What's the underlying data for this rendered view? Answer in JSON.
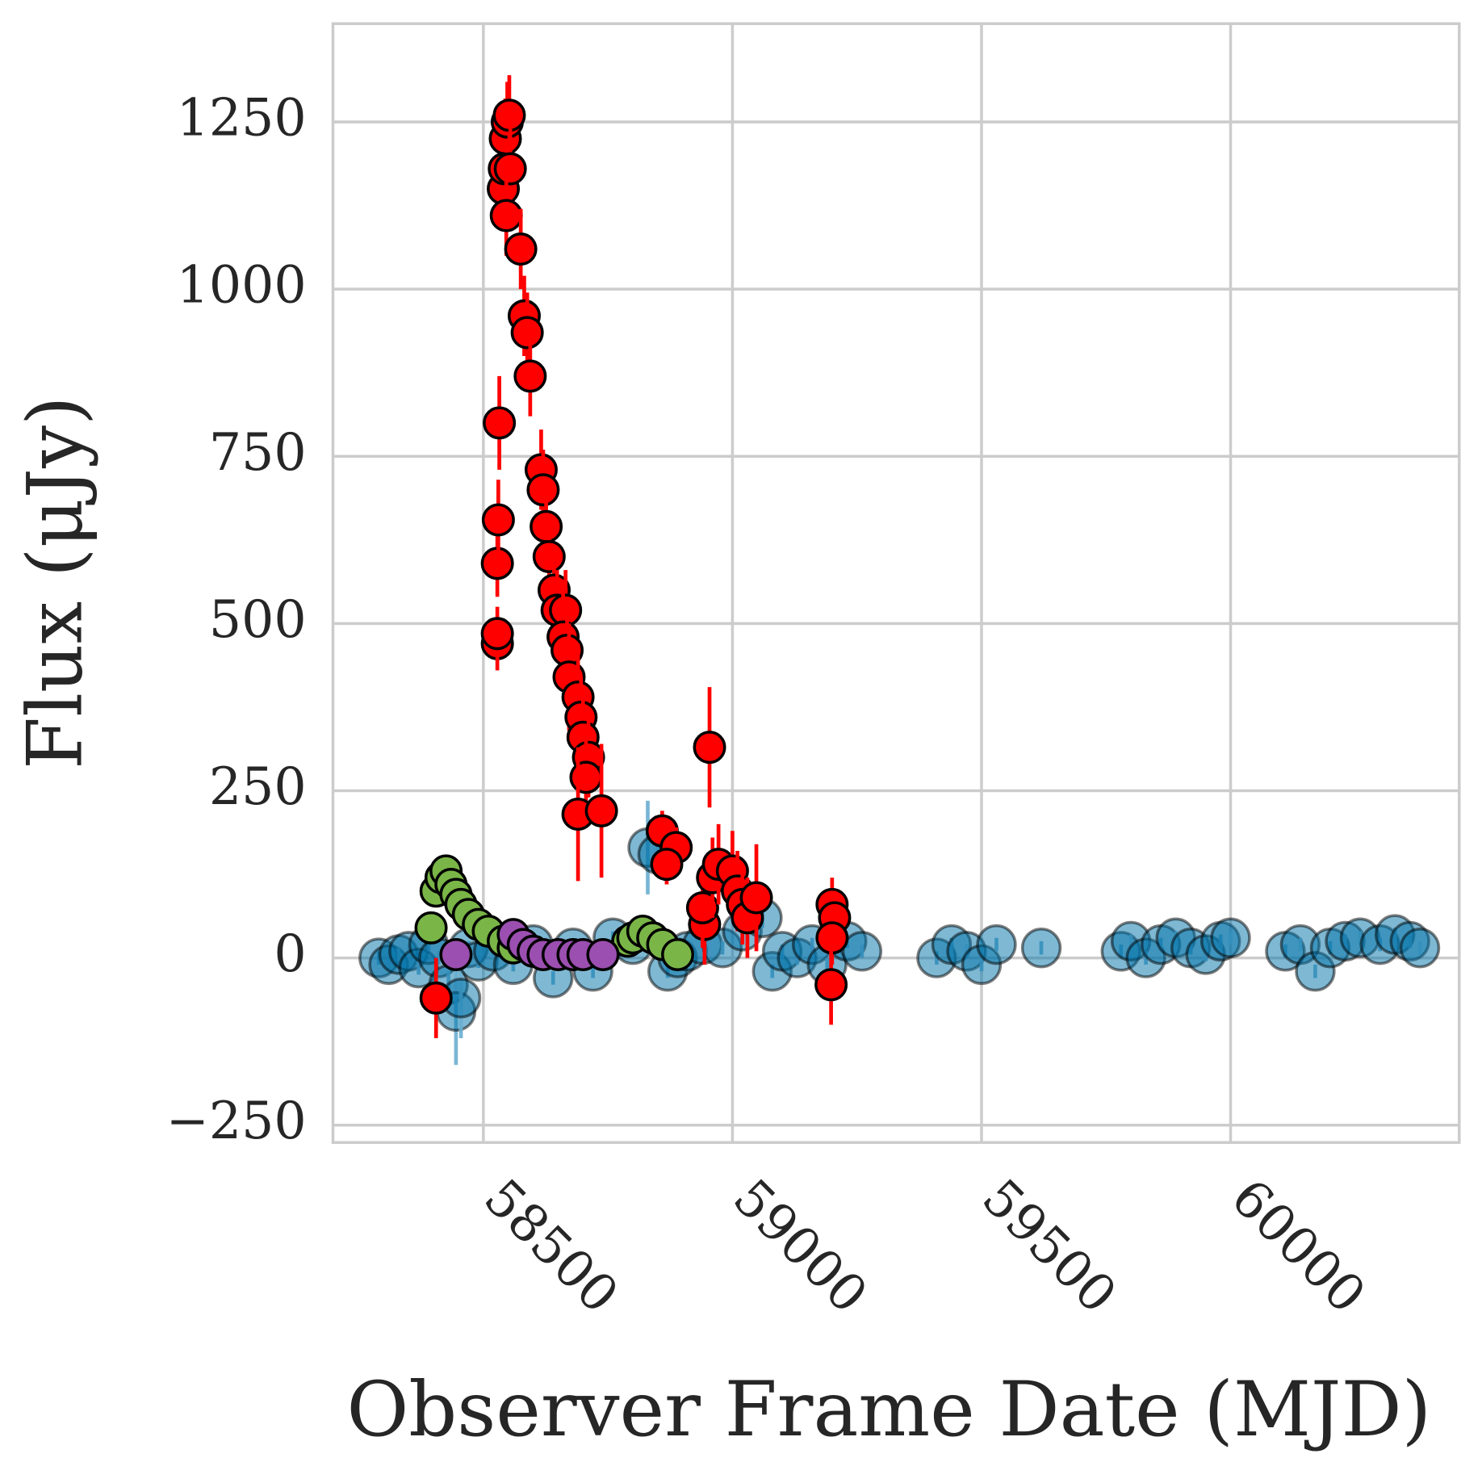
{
  "chart_data": {
    "type": "scatter",
    "xlabel": "Observer Frame Date (MJD)",
    "ylabel": "Flux (μJy)",
    "xlim": [
      58198,
      60459
    ],
    "ylim": [
      -276,
      1397
    ],
    "xticks": [
      58500,
      59000,
      59500,
      60000
    ],
    "yticks": [
      {
        "value": -250,
        "label": "−250"
      },
      0,
      250,
      500,
      750,
      1000,
      1250
    ],
    "grid": true,
    "series": [
      {
        "color": "#0072a8",
        "ecolor": "#6aaed0",
        "alpha": 0.5,
        "x": [
          58290,
          58310,
          58330,
          58350,
          58370,
          58390,
          58410,
          58430,
          58445,
          58455,
          58470,
          58490,
          58520,
          58560,
          58600,
          58640,
          58680,
          58720,
          58760,
          58800,
          58830,
          58850,
          58870,
          58890,
          58910,
          58940,
          58980,
          59020,
          59060,
          59080,
          59100,
          59130,
          59160,
          59190,
          59230,
          59260,
          59410,
          59440,
          59470,
          59500,
          59530,
          59620,
          59780,
          59800,
          59830,
          59860,
          59890,
          59920,
          59950,
          59980,
          60000,
          60110,
          60140,
          60170,
          60200,
          60230,
          60260,
          60300,
          60330,
          60360,
          60380
        ],
        "values": [
          0,
          -10,
          5,
          10,
          -15,
          20,
          0,
          -40,
          -80,
          -60,
          15,
          -5,
          10,
          -10,
          20,
          -30,
          15,
          -20,
          30,
          20,
          165,
          155,
          -20,
          0,
          10,
          20,
          15,
          40,
          60,
          -20,
          10,
          0,
          20,
          -10,
          25,
          10,
          0,
          20,
          10,
          -10,
          20,
          15,
          10,
          25,
          0,
          20,
          30,
          15,
          5,
          25,
          30,
          10,
          20,
          -20,
          15,
          25,
          30,
          20,
          35,
          25,
          15
        ],
        "errors": [
          10,
          10,
          10,
          10,
          10,
          10,
          10,
          20,
          80,
          60,
          10,
          10,
          10,
          10,
          10,
          10,
          10,
          10,
          10,
          10,
          70,
          20,
          10,
          10,
          10,
          10,
          10,
          10,
          15,
          10,
          10,
          10,
          10,
          10,
          10,
          10,
          10,
          10,
          10,
          10,
          10,
          10,
          10,
          10,
          10,
          10,
          10,
          10,
          10,
          10,
          10,
          10,
          10,
          10,
          10,
          10,
          10,
          10,
          10,
          10,
          10
        ]
      },
      {
        "color": "#7ab547",
        "ecolor": "#7ab547",
        "alpha": 1,
        "x": [
          58395,
          58405,
          58415,
          58425,
          58435,
          58445,
          58455,
          58470,
          58490,
          58510,
          58540,
          58560,
          58790,
          58800,
          58820,
          58840,
          58860,
          58890
        ],
        "values": [
          45,
          100,
          120,
          130,
          110,
          95,
          80,
          65,
          50,
          40,
          25,
          15,
          25,
          30,
          40,
          30,
          20,
          5
        ],
        "errors": [
          10,
          10,
          10,
          10,
          10,
          10,
          10,
          10,
          10,
          10,
          10,
          10,
          10,
          10,
          10,
          10,
          10,
          10
        ]
      },
      {
        "color": "#9b4fb0",
        "ecolor": "#9b4fb0",
        "alpha": 1,
        "x": [
          58445,
          58560,
          58580,
          58600,
          58620,
          58650,
          58680,
          58700,
          58740
        ],
        "values": [
          5,
          35,
          20,
          10,
          5,
          5,
          5,
          5,
          5
        ],
        "errors": [
          10,
          10,
          10,
          10,
          10,
          10,
          10,
          10,
          10
        ]
      },
      {
        "color": "#ff0000",
        "ecolor": "#ff0000",
        "alpha": 1,
        "x": [
          58405,
          58528,
          58528,
          58528,
          58530,
          58532,
          58540,
          58542,
          58544,
          58548,
          58552,
          58554,
          58546,
          58575,
          58582,
          58588,
          58594,
          58616,
          58620,
          58626,
          58632,
          58642,
          58648,
          58665,
          58660,
          58668,
          58672,
          58690,
          58696,
          58700,
          58711,
          58706,
          58690,
          58737,
          58859,
          58887,
          58868,
          58954,
          58944,
          58940,
          58960,
          58972,
          59000,
          59010,
          59020,
          59030,
          59048,
          59200,
          59205,
          59200,
          59198
        ],
        "values": [
          -60,
          470,
          485,
          590,
          655,
          800,
          1150,
          1180,
          1225,
          1250,
          1260,
          1180,
          1110,
          1060,
          960,
          935,
          870,
          730,
          700,
          645,
          600,
          550,
          520,
          520,
          480,
          460,
          420,
          390,
          360,
          330,
          300,
          270,
          215,
          220,
          190,
          165,
          140,
          315,
          50,
          75,
          120,
          140,
          130,
          100,
          80,
          60,
          90,
          80,
          60,
          30,
          -40
        ],
        "errors": [
          60,
          40,
          40,
          50,
          60,
          70,
          60,
          60,
          60,
          60,
          60,
          60,
          60,
          60,
          60,
          60,
          60,
          60,
          60,
          60,
          60,
          60,
          60,
          60,
          80,
          80,
          80,
          80,
          60,
          60,
          60,
          60,
          100,
          100,
          30,
          30,
          30,
          90,
          60,
          60,
          60,
          60,
          60,
          60,
          60,
          60,
          80,
          40,
          40,
          40,
          60
        ]
      }
    ]
  }
}
